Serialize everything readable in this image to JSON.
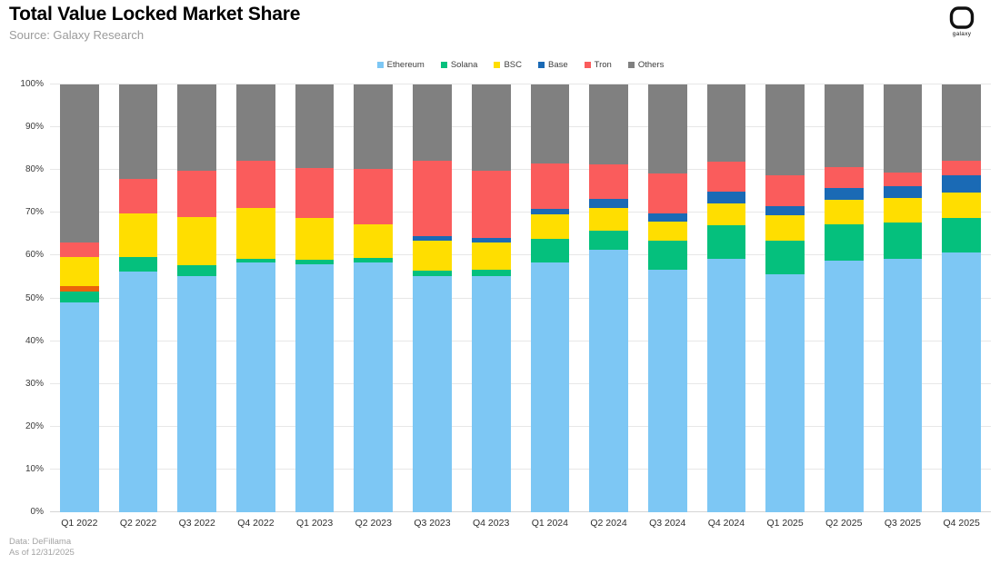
{
  "header": {
    "title": "Total Value Locked Market Share",
    "source": "Source: Galaxy Research",
    "logo_label": "galaxy"
  },
  "footer": {
    "line1": "Data: DeFillama",
    "line2": "As of 12/31/2025"
  },
  "chart_data": {
    "type": "bar",
    "variant": "stacked_percent",
    "title": "Total Value Locked Market Share",
    "source": "Source: Galaxy Research",
    "xlabel": "",
    "ylabel": "",
    "ylim": [
      0,
      100
    ],
    "grid": true,
    "legend_position": "top-center",
    "y_ticks": [
      "0%",
      "10%",
      "20%",
      "30%",
      "40%",
      "50%",
      "60%",
      "70%",
      "80%",
      "90%",
      "100%"
    ],
    "categories": [
      "Q1 2022",
      "Q2 2022",
      "Q3 2022",
      "Q4 2022",
      "Q1 2023",
      "Q2 2023",
      "Q3 2023",
      "Q4 2023",
      "Q1 2024",
      "Q2 2024",
      "Q3 2024",
      "Q4 2024",
      "Q1 2025",
      "Q2 2025",
      "Q3 2025",
      "Q4 2025"
    ],
    "series": [
      {
        "id": "ethereum",
        "name": "Ethereum",
        "color": "#7dc7f4",
        "in_legend": true,
        "values": [
          49.0,
          56.3,
          55.3,
          58.3,
          58.0,
          58.4,
          55.2,
          55.1,
          58.3,
          61.3,
          56.6,
          59.2,
          55.7,
          58.9,
          59.2,
          60.7
        ]
      },
      {
        "id": "solana",
        "name": "Solana",
        "color": "#05c07d",
        "in_legend": true,
        "values": [
          2.5,
          3.3,
          2.5,
          0.9,
          1.0,
          1.1,
          1.3,
          1.6,
          5.7,
          4.5,
          6.8,
          7.9,
          7.8,
          8.5,
          8.5,
          8.1
        ]
      },
      {
        "id": "unlabeled-sliver",
        "name": "",
        "color": "#eb640a",
        "in_legend": false,
        "values": [
          1.4,
          0,
          0,
          0,
          0,
          0,
          0,
          0,
          0,
          0,
          0,
          0,
          0,
          0,
          0,
          0
        ]
      },
      {
        "id": "bsc",
        "name": "BSC",
        "color": "#ffde00",
        "in_legend": true,
        "values": [
          6.7,
          10.3,
          11.2,
          11.9,
          9.8,
          7.9,
          7.0,
          6.4,
          5.6,
          5.4,
          4.5,
          5.1,
          6.0,
          5.6,
          5.7,
          6.0
        ]
      },
      {
        "id": "base",
        "name": "Base",
        "color": "#1a6ab5",
        "in_legend": true,
        "values": [
          0,
          0,
          0,
          0,
          0,
          0,
          1.1,
          1.0,
          1.4,
          2.1,
          2.0,
          2.8,
          2.1,
          2.9,
          2.8,
          3.9
        ]
      },
      {
        "id": "tron",
        "name": "Tron",
        "color": "#fa5c5c",
        "in_legend": true,
        "values": [
          3.5,
          8.1,
          10.8,
          11.0,
          11.7,
          12.9,
          17.5,
          15.7,
          10.6,
          8.1,
          9.4,
          7.0,
          7.1,
          4.8,
          3.3,
          3.5
        ]
      },
      {
        "id": "others",
        "name": "Others",
        "color": "#808080",
        "in_legend": true,
        "values": [
          36.9,
          22.0,
          20.2,
          17.9,
          19.5,
          19.7,
          17.9,
          20.2,
          18.4,
          18.6,
          20.7,
          18.0,
          21.3,
          19.3,
          20.5,
          17.8
        ]
      }
    ]
  },
  "colors": {
    "background": "#ffffff",
    "grid": "#e7e7e7",
    "axis_text": "#3a3a3a",
    "source_text": "#9b9b9b",
    "footer_text": "#a3a3a3"
  }
}
